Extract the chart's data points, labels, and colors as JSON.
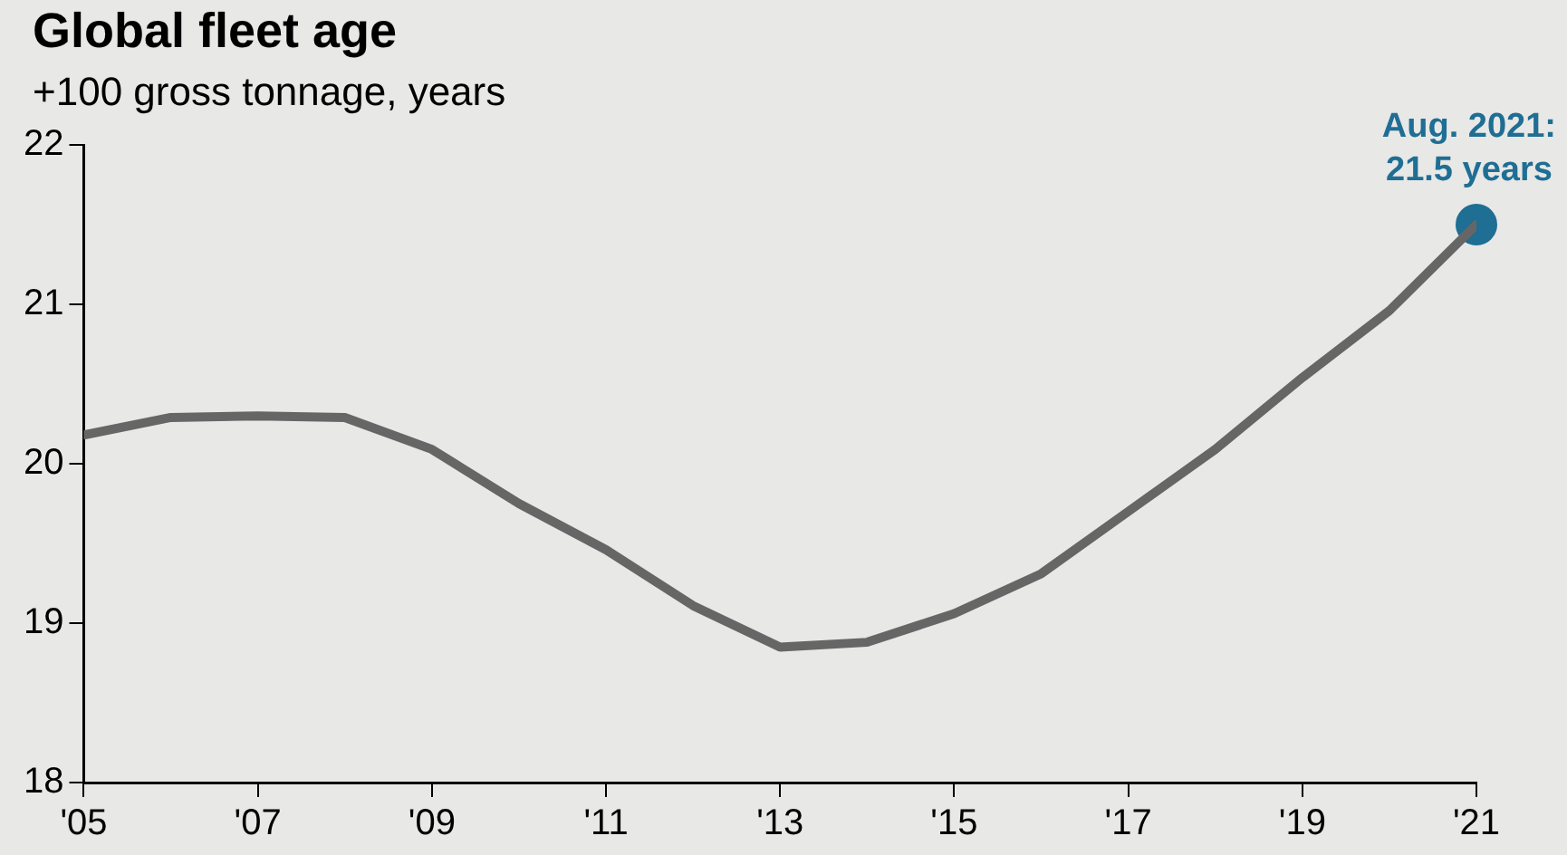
{
  "chart_data": {
    "type": "line",
    "title": "Global fleet age",
    "subtitle": "+100 gross tonnage, years",
    "x": [
      2005,
      2006,
      2007,
      2008,
      2009,
      2010,
      2011,
      2012,
      2013,
      2014,
      2015,
      2016,
      2017,
      2018,
      2019,
      2020,
      2021
    ],
    "series": [
      {
        "color": "#666666",
        "values": [
          20.18,
          20.29,
          20.3,
          20.29,
          20.09,
          19.75,
          19.46,
          19.11,
          18.85,
          18.88,
          19.06,
          19.31,
          19.7,
          20.09,
          20.54,
          20.96,
          21.5
        ]
      },
      {
        "type": "scatter",
        "color": "#1f6e94",
        "x": [
          2021
        ],
        "values": [
          21.5
        ]
      }
    ],
    "annotations": [
      {
        "text": "Aug. 2021:\n21.5 years",
        "x": 2021,
        "y": 21.5
      }
    ],
    "xlim": [
      2005,
      2021
    ],
    "xticks": [
      {
        "value": 2005,
        "label": "'05"
      },
      {
        "value": 2007,
        "label": "'07"
      },
      {
        "value": 2009,
        "label": "'09"
      },
      {
        "value": 2011,
        "label": "'11"
      },
      {
        "value": 2013,
        "label": "'13"
      },
      {
        "value": 2015,
        "label": "'15"
      },
      {
        "value": 2017,
        "label": "'17"
      },
      {
        "value": 2019,
        "label": "'19"
      },
      {
        "value": 2021,
        "label": "'21"
      }
    ],
    "ylim": [
      18,
      22
    ],
    "yticks": [
      18,
      19,
      20,
      21,
      22
    ],
    "grid": false,
    "legend": false
  }
}
